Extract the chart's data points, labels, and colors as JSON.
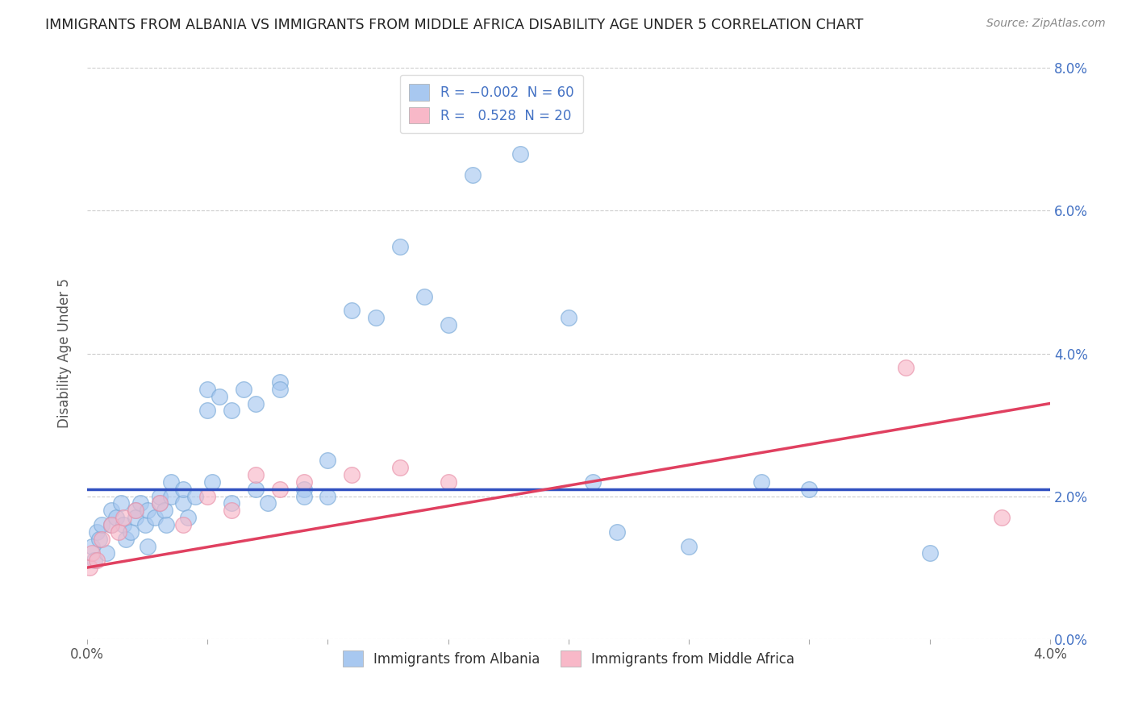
{
  "title": "IMMIGRANTS FROM ALBANIA VS IMMIGRANTS FROM MIDDLE AFRICA DISABILITY AGE UNDER 5 CORRELATION CHART",
  "source": "Source: ZipAtlas.com",
  "ylabel": "Disability Age Under 5",
  "xlim": [
    0.0,
    0.04
  ],
  "ylim": [
    0.0,
    0.08
  ],
  "xticks": [
    0.0,
    0.005,
    0.01,
    0.015,
    0.02,
    0.025,
    0.03,
    0.035,
    0.04
  ],
  "yticks": [
    0.0,
    0.02,
    0.04,
    0.06,
    0.08
  ],
  "albania_color": "#a8c8f0",
  "albania_edge": "#7aaad8",
  "middle_africa_color": "#f8b8c8",
  "middle_africa_edge": "#e890a8",
  "albania_line_color": "#3050c0",
  "middle_africa_line_color": "#e04060",
  "albania_x": [
    0.0002,
    0.0003,
    0.0004,
    0.0005,
    0.0006,
    0.0008,
    0.001,
    0.001,
    0.0012,
    0.0014,
    0.0015,
    0.0016,
    0.0018,
    0.002,
    0.002,
    0.0022,
    0.0024,
    0.0025,
    0.0025,
    0.0028,
    0.003,
    0.003,
    0.0032,
    0.0033,
    0.0035,
    0.0035,
    0.004,
    0.004,
    0.0042,
    0.0045,
    0.005,
    0.005,
    0.0052,
    0.0055,
    0.006,
    0.006,
    0.0065,
    0.007,
    0.007,
    0.0075,
    0.008,
    0.008,
    0.009,
    0.009,
    0.01,
    0.01,
    0.011,
    0.012,
    0.013,
    0.014,
    0.015,
    0.016,
    0.018,
    0.02,
    0.021,
    0.022,
    0.025,
    0.028,
    0.03,
    0.035
  ],
  "albania_y": [
    0.013,
    0.011,
    0.015,
    0.014,
    0.016,
    0.012,
    0.016,
    0.018,
    0.017,
    0.019,
    0.016,
    0.014,
    0.015,
    0.018,
    0.017,
    0.019,
    0.016,
    0.018,
    0.013,
    0.017,
    0.019,
    0.02,
    0.018,
    0.016,
    0.02,
    0.022,
    0.019,
    0.021,
    0.017,
    0.02,
    0.035,
    0.032,
    0.022,
    0.034,
    0.032,
    0.019,
    0.035,
    0.033,
    0.021,
    0.019,
    0.036,
    0.035,
    0.021,
    0.02,
    0.025,
    0.02,
    0.046,
    0.045,
    0.055,
    0.048,
    0.044,
    0.065,
    0.068,
    0.045,
    0.022,
    0.015,
    0.013,
    0.022,
    0.021,
    0.012
  ],
  "middle_africa_x": [
    0.0001,
    0.0002,
    0.0004,
    0.0006,
    0.001,
    0.0013,
    0.0015,
    0.002,
    0.003,
    0.004,
    0.005,
    0.006,
    0.007,
    0.008,
    0.009,
    0.011,
    0.013,
    0.015,
    0.034,
    0.038
  ],
  "middle_africa_y": [
    0.01,
    0.012,
    0.011,
    0.014,
    0.016,
    0.015,
    0.017,
    0.018,
    0.019,
    0.016,
    0.02,
    0.018,
    0.023,
    0.021,
    0.022,
    0.023,
    0.024,
    0.022,
    0.038,
    0.017
  ],
  "albania_trend": [
    0.021,
    0.021
  ],
  "middle_africa_trend_start": 0.01,
  "middle_africa_trend_end": 0.033
}
